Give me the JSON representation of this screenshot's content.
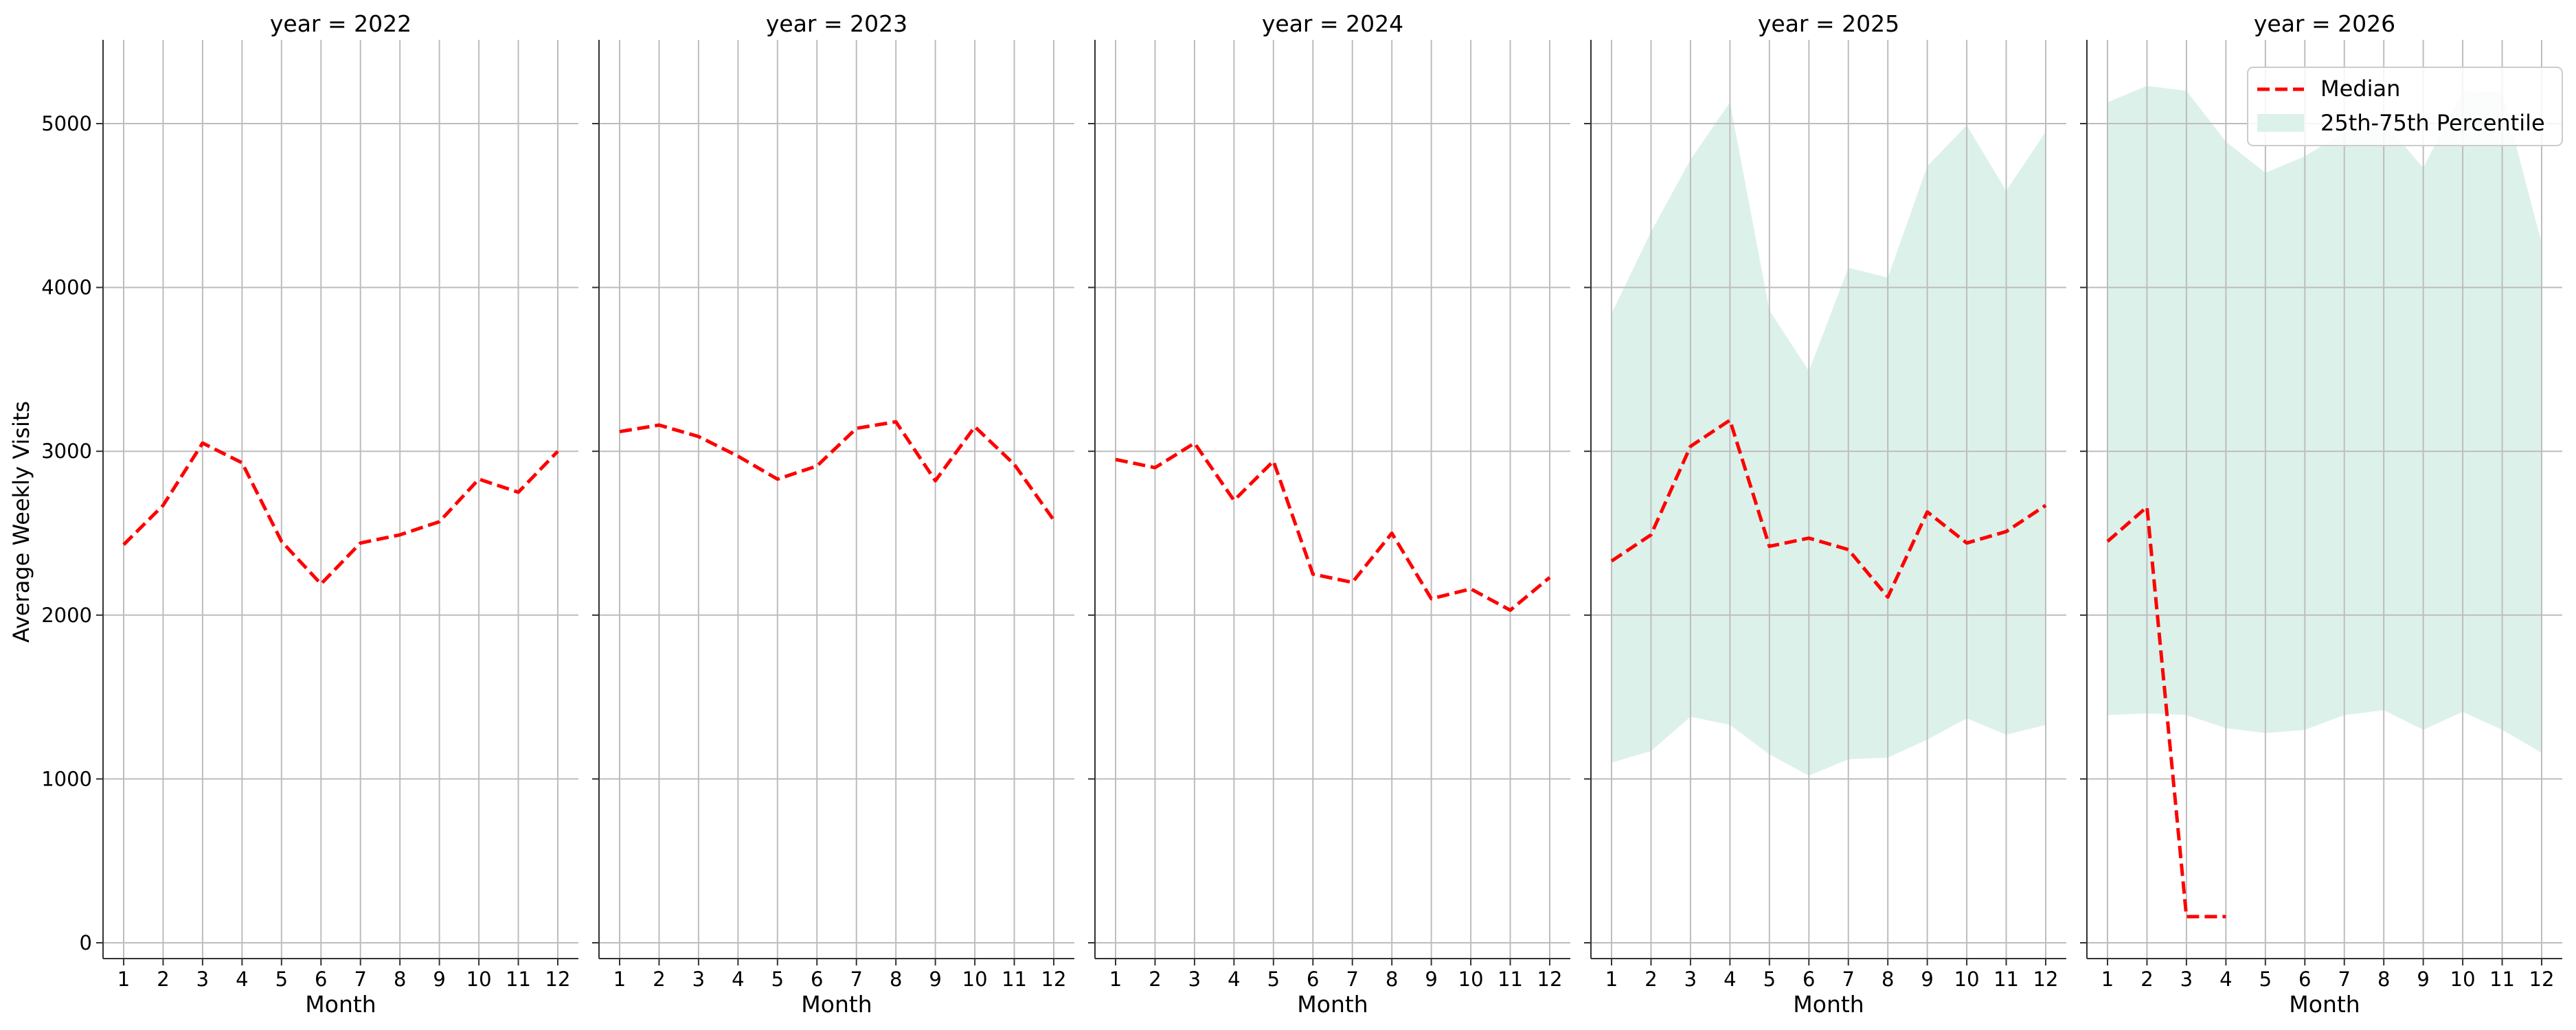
{
  "chart_data": {
    "type": "line",
    "layout": "facet-columns",
    "facet_variable": "year",
    "ylabel": "Average Weekly Visits",
    "xlabel": "Month",
    "x_ticks": [
      "1",
      "2",
      "3",
      "4",
      "5",
      "6",
      "7",
      "8",
      "9",
      "10",
      "11",
      "12"
    ],
    "y_ticks": [
      "0",
      "1000",
      "2000",
      "3000",
      "4000",
      "5000"
    ],
    "xlim": [
      0.5,
      12.5
    ],
    "ylim": [
      -100,
      5500
    ],
    "grid": true,
    "legend": {
      "placement": "top-right",
      "entries": [
        {
          "label": "Median",
          "style": "dashed-line",
          "color": "#ff0000"
        },
        {
          "label": "25th-75th Percentile",
          "style": "band",
          "color": "#dcf1ea"
        }
      ]
    },
    "colors": {
      "median": "#ff0000",
      "band": "#dcf1ea",
      "grid": "#bdbdbd",
      "axis": "#333333"
    },
    "panels": [
      {
        "title": "year = 2022",
        "median": {
          "x": [
            1,
            2,
            3,
            4,
            5,
            6,
            7,
            8,
            9,
            10,
            11,
            12
          ],
          "y": [
            2430,
            2670,
            3050,
            2930,
            2450,
            2190,
            2440,
            2490,
            2570,
            2830,
            2750,
            3000
          ]
        }
      },
      {
        "title": "year = 2023",
        "median": {
          "x": [
            1,
            2,
            3,
            4,
            5,
            6,
            7,
            8,
            9,
            10,
            11,
            12
          ],
          "y": [
            3120,
            3160,
            3090,
            2970,
            2830,
            2910,
            3140,
            3180,
            2820,
            3150,
            2920,
            2580
          ]
        }
      },
      {
        "title": "year = 2024",
        "median": {
          "x": [
            1,
            2,
            3,
            4,
            5,
            6,
            7,
            8,
            9,
            10,
            11,
            12
          ],
          "y": [
            2950,
            2900,
            3050,
            2700,
            2940,
            2250,
            2200,
            2500,
            2100,
            2160,
            2030,
            2230
          ]
        }
      },
      {
        "title": "year = 2025",
        "median": {
          "x": [
            1,
            2,
            3,
            4,
            5,
            6,
            7,
            8,
            9,
            10,
            11,
            12
          ],
          "y": [
            2330,
            2490,
            3030,
            3190,
            2420,
            2470,
            2400,
            2110,
            2630,
            2440,
            2510,
            2670
          ]
        },
        "band": {
          "x": [
            1,
            2,
            3,
            4,
            5,
            6,
            7,
            8,
            9,
            10,
            11,
            12
          ],
          "q25": [
            1100,
            1170,
            1380,
            1330,
            1150,
            1020,
            1120,
            1130,
            1240,
            1370,
            1270,
            1330
          ],
          "q75": [
            3840,
            4340,
            4780,
            5130,
            3860,
            3490,
            4120,
            4060,
            4740,
            4990,
            4590,
            4950
          ]
        }
      },
      {
        "title": "year = 2026",
        "median": {
          "x": [
            1,
            2,
            3,
            4
          ],
          "y": [
            2450,
            2660,
            160,
            160
          ]
        },
        "band": {
          "x": [
            1,
            2,
            3,
            4,
            5,
            6,
            7,
            8,
            9,
            10,
            11,
            12
          ],
          "q25": [
            1390,
            1400,
            1390,
            1310,
            1280,
            1300,
            1390,
            1420,
            1300,
            1410,
            1300,
            1160
          ],
          "q75": [
            5130,
            5230,
            5200,
            4890,
            4700,
            4800,
            4950,
            5010,
            4730,
            5200,
            5190,
            4270
          ]
        }
      }
    ]
  }
}
